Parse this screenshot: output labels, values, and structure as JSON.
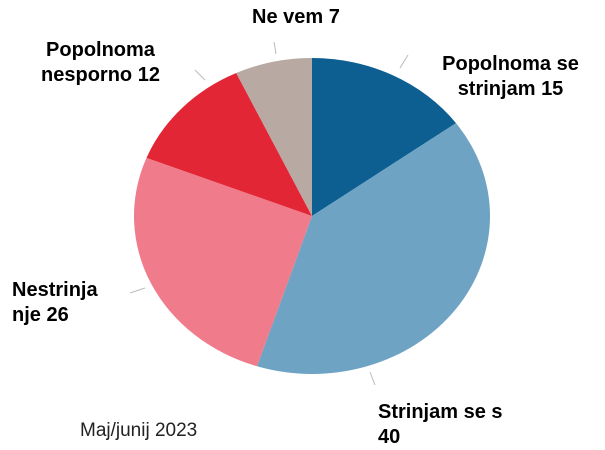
{
  "chart_data": {
    "type": "pie",
    "subtitle": "Maj/junij 2023",
    "categories": [
      "Popolnoma se strinjam",
      "Strinjam se s",
      "Nestrinjanje",
      "Popolnoma nesporno",
      "Ne vem"
    ],
    "values": [
      15,
      40,
      26,
      12,
      7
    ],
    "colors": [
      "#0d5f91",
      "#6fa3c4",
      "#f07b8a",
      "#e32636",
      "#b8a9a3"
    ]
  }
}
